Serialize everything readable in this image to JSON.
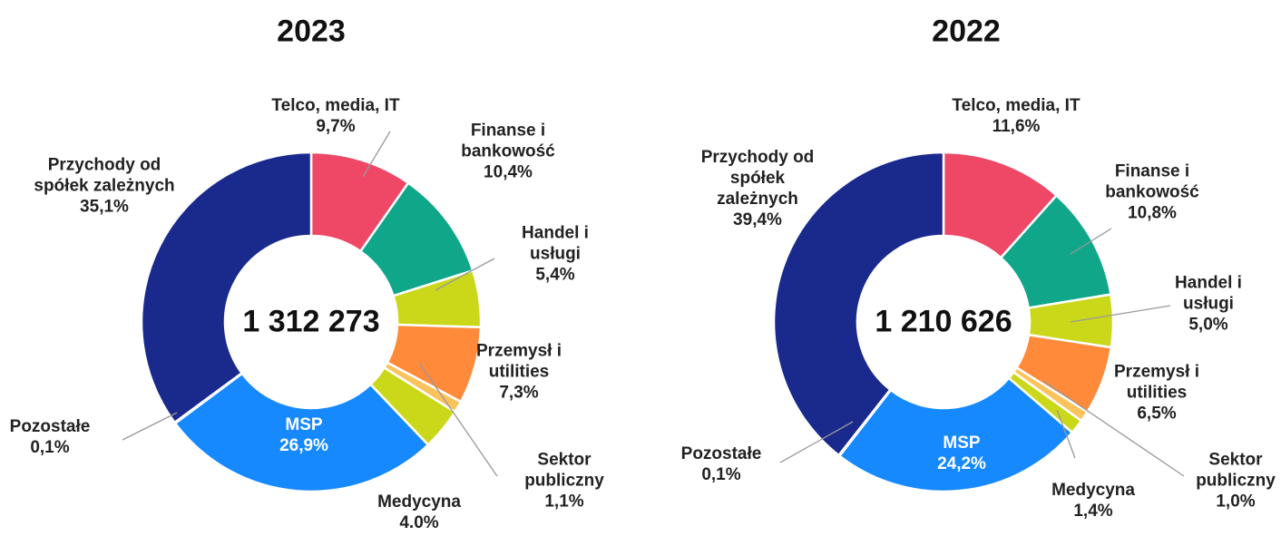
{
  "chart_data": [
    {
      "type": "donut",
      "title": "2023",
      "center_label": "1 312 273",
      "categories": [
        "Telco, media, IT",
        "Finanse i\nbankowość",
        "Handel i\nusługi",
        "Przemysł i\nutilities",
        "Sektor\npubliczny",
        "Medycyna",
        "MSP",
        "Pozostałe",
        "Przychody od\nspółek zależnych"
      ],
      "values": [
        9.7,
        10.4,
        5.4,
        7.3,
        1.1,
        4.0,
        26.9,
        0.1,
        35.1
      ],
      "value_labels": [
        "9,7%",
        "10,4%",
        "5,4%",
        "7,3%",
        "1,1%",
        "4.0%",
        "26,9%",
        "0,1%",
        "35,1%"
      ],
      "colors": [
        "#ee4866",
        "#10a68a",
        "#cbd81a",
        "#ff8a3a",
        "#fbc35c",
        "#cbd81a",
        "#1689ff",
        "#e6dcb8",
        "#1a2a8c"
      ]
    },
    {
      "type": "donut",
      "title": "2022",
      "center_label": "1 210 626",
      "categories": [
        "Telco, media, IT",
        "Finanse i\nbankowość",
        "Handel i\nusługi",
        "Przemysł i\nutilities",
        "Sektor\npubliczny",
        "Medycyna",
        "MSP",
        "Pozostałe",
        "Przychody od\nspółek\nzależnych"
      ],
      "values": [
        11.6,
        10.8,
        5.0,
        6.5,
        1.0,
        1.4,
        24.2,
        0.1,
        39.4
      ],
      "value_labels": [
        "11,6%",
        "10,8%",
        "5,0%",
        "6,5%",
        "1,0%",
        "1,4%",
        "24,2%",
        "0,1%",
        "39,4%"
      ],
      "colors": [
        "#ee4866",
        "#10a68a",
        "#cbd81a",
        "#ff8a3a",
        "#fbc35c",
        "#cbd81a",
        "#1689ff",
        "#e6dcb8",
        "#1a2a8c"
      ]
    }
  ]
}
